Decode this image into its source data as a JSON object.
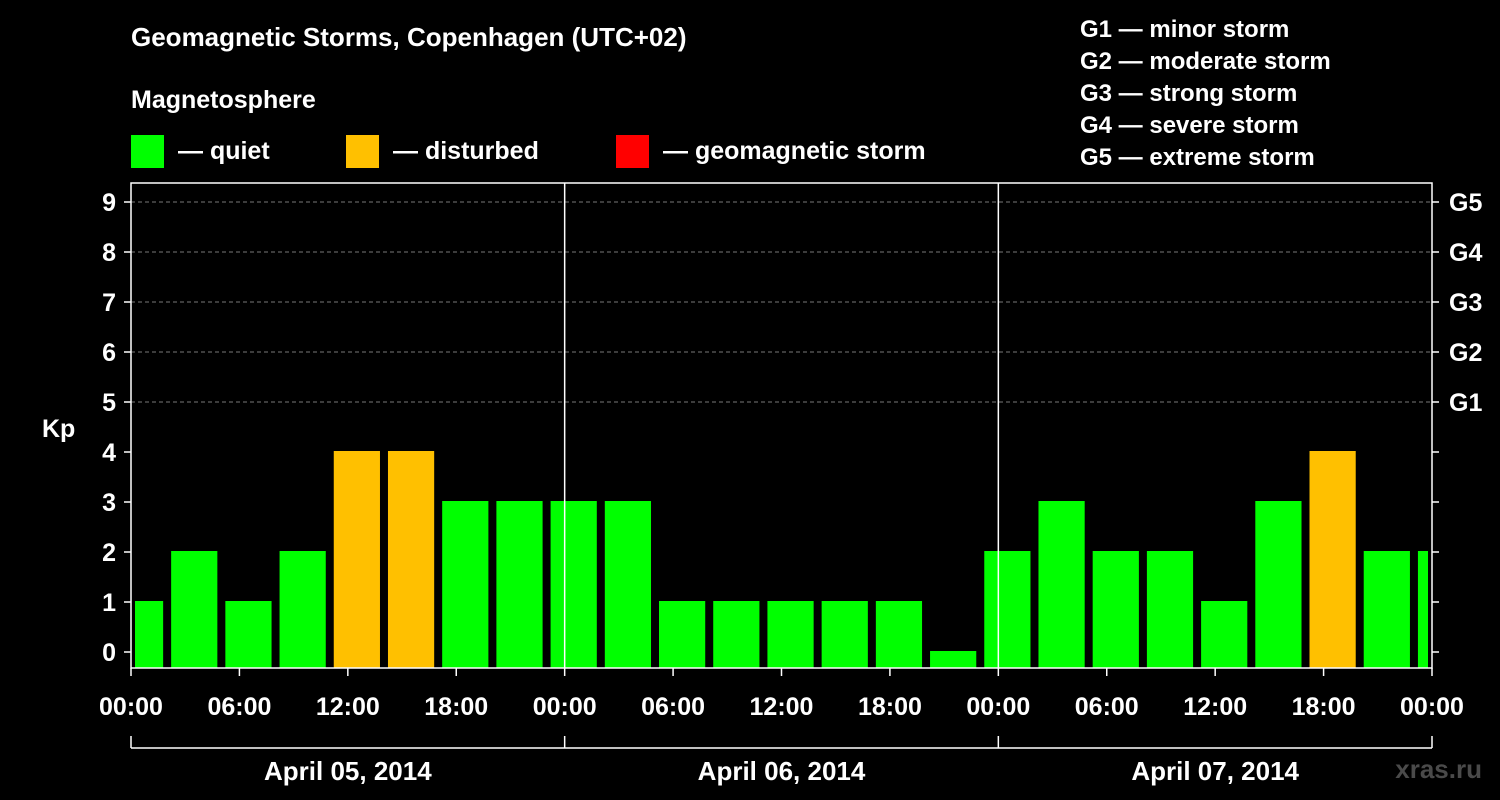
{
  "header": {
    "title": "Geomagnetic Storms, Copenhagen (UTC+02)",
    "subtitle": "Magnetosphere"
  },
  "legend": [
    {
      "label": "— quiet",
      "color": "#00ff00"
    },
    {
      "label": "— disturbed",
      "color": "#ffc000"
    },
    {
      "label": "— geomagnetic storm",
      "color": "#ff0000"
    }
  ],
  "storm_scale": [
    "G1 — minor storm",
    "G2 — moderate storm",
    "G3 — strong storm",
    "G4 — severe storm",
    "G5 — extreme storm"
  ],
  "watermark": "xras.ru",
  "chart_data": {
    "type": "bar",
    "title": "Geomagnetic Storms, Copenhagen (UTC+02)",
    "ylabel": "Kp",
    "ylim": [
      0,
      9
    ],
    "yticks": [
      "0",
      "1",
      "2",
      "3",
      "4",
      "5",
      "6",
      "7",
      "8",
      "9"
    ],
    "right_axis_labels": [
      {
        "label": "G1",
        "kp": 5
      },
      {
        "label": "G2",
        "kp": 6
      },
      {
        "label": "G3",
        "kp": 7
      },
      {
        "label": "G4",
        "kp": 8
      },
      {
        "label": "G5",
        "kp": 9
      }
    ],
    "x_range_hours": [
      0,
      72
    ],
    "x_ticks": [
      {
        "label": "00:00",
        "hour": 0
      },
      {
        "label": "06:00",
        "hour": 6
      },
      {
        "label": "12:00",
        "hour": 12
      },
      {
        "label": "18:00",
        "hour": 18
      },
      {
        "label": "00:00",
        "hour": 24
      },
      {
        "label": "06:00",
        "hour": 30
      },
      {
        "label": "12:00",
        "hour": 36
      },
      {
        "label": "18:00",
        "hour": 42
      },
      {
        "label": "00:00",
        "hour": 48
      },
      {
        "label": "06:00",
        "hour": 54
      },
      {
        "label": "12:00",
        "hour": 60
      },
      {
        "label": "18:00",
        "hour": 66
      },
      {
        "label": "00:00",
        "hour": 72
      }
    ],
    "dates": [
      {
        "label": "April 05, 2014",
        "start_hour": 0,
        "end_hour": 24
      },
      {
        "label": "April 06, 2014",
        "start_hour": 24,
        "end_hour": 48
      },
      {
        "label": "April 07, 2014",
        "start_hour": 48,
        "end_hour": 72
      }
    ],
    "level_colors": {
      "quiet": "#00ff00",
      "disturbed": "#ffc000",
      "storm": "#ff0000"
    },
    "bars": [
      {
        "start_hour": 0,
        "end_hour": 2,
        "kp": 1,
        "level": "quiet"
      },
      {
        "start_hour": 2,
        "end_hour": 5,
        "kp": 2,
        "level": "quiet"
      },
      {
        "start_hour": 5,
        "end_hour": 8,
        "kp": 1,
        "level": "quiet"
      },
      {
        "start_hour": 8,
        "end_hour": 11,
        "kp": 2,
        "level": "quiet"
      },
      {
        "start_hour": 11,
        "end_hour": 14,
        "kp": 4,
        "level": "disturbed"
      },
      {
        "start_hour": 14,
        "end_hour": 17,
        "kp": 4,
        "level": "disturbed"
      },
      {
        "start_hour": 17,
        "end_hour": 20,
        "kp": 3,
        "level": "quiet"
      },
      {
        "start_hour": 20,
        "end_hour": 23,
        "kp": 3,
        "level": "quiet"
      },
      {
        "start_hour": 23,
        "end_hour": 26,
        "kp": 3,
        "level": "quiet"
      },
      {
        "start_hour": 26,
        "end_hour": 29,
        "kp": 3,
        "level": "quiet"
      },
      {
        "start_hour": 29,
        "end_hour": 32,
        "kp": 1,
        "level": "quiet"
      },
      {
        "start_hour": 32,
        "end_hour": 35,
        "kp": 1,
        "level": "quiet"
      },
      {
        "start_hour": 35,
        "end_hour": 38,
        "kp": 1,
        "level": "quiet"
      },
      {
        "start_hour": 38,
        "end_hour": 41,
        "kp": 1,
        "level": "quiet"
      },
      {
        "start_hour": 41,
        "end_hour": 44,
        "kp": 1,
        "level": "quiet"
      },
      {
        "start_hour": 44,
        "end_hour": 47,
        "kp": 0,
        "level": "quiet"
      },
      {
        "start_hour": 47,
        "end_hour": 50,
        "kp": 2,
        "level": "quiet"
      },
      {
        "start_hour": 50,
        "end_hour": 53,
        "kp": 3,
        "level": "quiet"
      },
      {
        "start_hour": 53,
        "end_hour": 56,
        "kp": 2,
        "level": "quiet"
      },
      {
        "start_hour": 56,
        "end_hour": 59,
        "kp": 2,
        "level": "quiet"
      },
      {
        "start_hour": 59,
        "end_hour": 62,
        "kp": 1,
        "level": "quiet"
      },
      {
        "start_hour": 62,
        "end_hour": 65,
        "kp": 3,
        "level": "quiet"
      },
      {
        "start_hour": 65,
        "end_hour": 68,
        "kp": 4,
        "level": "disturbed"
      },
      {
        "start_hour": 68,
        "end_hour": 71,
        "kp": 2,
        "level": "quiet"
      },
      {
        "start_hour": 71,
        "end_hour": 72,
        "kp": 2,
        "level": "quiet"
      }
    ]
  }
}
